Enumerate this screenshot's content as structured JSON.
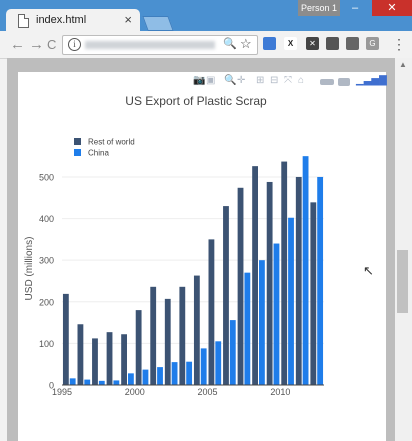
{
  "browser": {
    "tab_title": "index.html",
    "tab_close": "×",
    "person": "Person 1",
    "min": "–",
    "max": "❐",
    "close": "✕",
    "back": "←",
    "forward": "→",
    "reload": "C",
    "info": "i",
    "zoom": "🔍",
    "star": "☆",
    "menu": "⋮"
  },
  "modebar": {
    "camera": "📷",
    "save": "▣",
    "zoom": "🔍",
    "pan": "✛",
    "zoom_in": "⊞",
    "zoom_out": "⊟",
    "autoscale": "⤧",
    "home": "⌂"
  },
  "colors": {
    "rest_of_world": "#3c5373",
    "china": "#1f7dea",
    "grid": "#eeeeee",
    "tick_text": "#555555",
    "title_text": "#444444"
  },
  "chart_data": {
    "type": "bar",
    "title": "US Export of Plastic Scrap",
    "xlabel": "",
    "ylabel": "USD (millions)",
    "x": [
      1995,
      1996,
      1997,
      1998,
      1999,
      2000,
      2001,
      2002,
      2003,
      2004,
      2005,
      2006,
      2007,
      2008,
      2009,
      2010,
      2011,
      2012
    ],
    "x_ticks": [
      "1995",
      "2000",
      "2005",
      "2010"
    ],
    "y_ticks": [
      "0",
      "100",
      "200",
      "300",
      "400",
      "500"
    ],
    "ylim": [
      0,
      560
    ],
    "legend_position": "top-left",
    "series": [
      {
        "name": "Rest of world",
        "color": "#3c5373",
        "values": [
          219,
          146,
          112,
          127,
          122,
          180,
          236,
          207,
          236,
          263,
          350,
          430,
          474,
          526,
          488,
          537,
          500,
          439
        ]
      },
      {
        "name": "China",
        "color": "#1f7dea",
        "values": [
          16,
          13,
          10,
          11,
          28,
          37,
          43,
          55,
          56,
          88,
          105,
          156,
          270,
          300,
          340,
          402,
          550,
          500
        ]
      }
    ]
  }
}
